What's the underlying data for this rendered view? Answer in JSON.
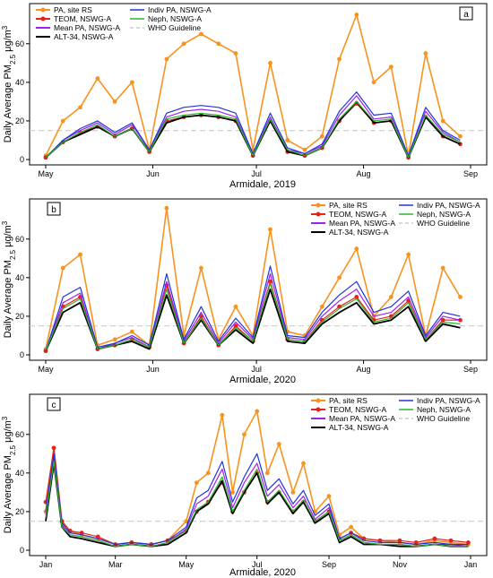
{
  "figure": {
    "y_axis_label_text": "Daily Average PM",
    "y_axis_label_sub": "2.5",
    "y_axis_label_unit": " μg/m",
    "y_axis_label_sup": "3"
  },
  "legend_order": [
    "PA, site RS",
    "TEOM, NSWG-A",
    "Mean PA, NSWG-A",
    "ALT-34, NSWG-A",
    "Indiv PA, NSWG-A",
    "Neph, NSWG-A",
    "WHO Guideline"
  ],
  "chart_data": [
    {
      "panel": "a",
      "type": "line",
      "title": "",
      "xlabel": "Armidale, 2019",
      "ylabel": "Daily Average PM2.5 μg/m3",
      "x_type": "date",
      "x_ticks": [
        "2019-05-01",
        "2019-06-01",
        "2019-07-01",
        "2019-08-01",
        "2019-09-01"
      ],
      "x_tick_labels": [
        "May",
        "Jun",
        "Jul",
        "Aug",
        "Sep"
      ],
      "xlim": [
        "2019-05-01",
        "2019-09-01"
      ],
      "y_ticks": [
        0,
        20,
        40,
        60
      ],
      "ylim": [
        0,
        78
      ],
      "legend": {
        "placement": "top-left",
        "columns": 2
      },
      "who_guideline": 15,
      "x": [
        "2019-05-01",
        "2019-05-06",
        "2019-05-11",
        "2019-05-16",
        "2019-05-21",
        "2019-05-26",
        "2019-05-31",
        "2019-06-05",
        "2019-06-10",
        "2019-06-15",
        "2019-06-20",
        "2019-06-25",
        "2019-06-30",
        "2019-07-05",
        "2019-07-10",
        "2019-07-15",
        "2019-07-20",
        "2019-07-25",
        "2019-07-30",
        "2019-08-04",
        "2019-08-09",
        "2019-08-14",
        "2019-08-19",
        "2019-08-24",
        "2019-08-29"
      ],
      "series": [
        {
          "name": "PA, site RS",
          "color": "#f7931e",
          "values": [
            2,
            20,
            27,
            42,
            30,
            40,
            5,
            52,
            60,
            65,
            60,
            55,
            5,
            50,
            10,
            5,
            12,
            52,
            75,
            40,
            48,
            2,
            55,
            20,
            12
          ]
        },
        {
          "name": "TEOM, NSWG-A",
          "color": "#e8221b",
          "values": [
            1,
            9,
            14,
            17,
            12,
            16,
            4,
            20,
            22,
            23,
            22,
            20,
            2,
            20,
            4,
            2,
            6,
            20,
            29,
            19,
            20,
            1,
            22,
            12,
            8
          ]
        },
        {
          "name": "Mean PA, NSWG-A",
          "color": "#a020f0",
          "values": [
            1,
            10,
            15,
            19,
            13,
            18,
            5,
            22,
            25,
            26,
            25,
            22,
            3,
            22,
            5,
            3,
            7,
            23,
            33,
            21,
            22,
            2,
            25,
            14,
            9
          ]
        },
        {
          "name": "ALT-34, NSWG-A",
          "color": "#000000",
          "values": [
            1,
            9,
            13,
            17,
            12,
            16,
            4,
            19,
            22,
            23,
            22,
            20,
            2,
            20,
            4,
            2,
            6,
            20,
            30,
            19,
            20,
            1,
            22,
            12,
            8
          ]
        },
        {
          "name": "Indiv PA, NSWG-A",
          "color": "#2233dd",
          "values": [
            1,
            10,
            16,
            20,
            14,
            19,
            5,
            24,
            27,
            28,
            27,
            24,
            3,
            24,
            6,
            3,
            8,
            25,
            35,
            23,
            24,
            2,
            27,
            15,
            10
          ]
        },
        {
          "name": "Neph, NSWG-A",
          "color": "#2db52d",
          "values": [
            1,
            9,
            14,
            18,
            12,
            16,
            4,
            21,
            23,
            24,
            23,
            21,
            2,
            21,
            5,
            2,
            6,
            21,
            30,
            20,
            21,
            1,
            23,
            13,
            9
          ]
        }
      ]
    },
    {
      "panel": "b",
      "type": "line",
      "title": "",
      "xlabel": "Armidale, 2020",
      "ylabel": "Daily Average PM2.5 μg/m3",
      "x_type": "date",
      "x_ticks": [
        "2020-05-01",
        "2020-06-01",
        "2020-07-01",
        "2020-08-01",
        "2020-09-01"
      ],
      "x_tick_labels": [
        "May",
        "Jun",
        "Jul",
        "Aug",
        "Sep"
      ],
      "xlim": [
        "2020-05-01",
        "2020-09-01"
      ],
      "y_ticks": [
        0,
        20,
        40,
        60
      ],
      "ylim": [
        0,
        78
      ],
      "legend": {
        "placement": "top-right",
        "columns": 2
      },
      "who_guideline": 15,
      "x": [
        "2020-05-01",
        "2020-05-06",
        "2020-05-11",
        "2020-05-16",
        "2020-05-21",
        "2020-05-26",
        "2020-05-31",
        "2020-06-05",
        "2020-06-10",
        "2020-06-15",
        "2020-06-20",
        "2020-06-25",
        "2020-06-30",
        "2020-07-05",
        "2020-07-10",
        "2020-07-15",
        "2020-07-20",
        "2020-07-25",
        "2020-07-30",
        "2020-08-04",
        "2020-08-09",
        "2020-08-14",
        "2020-08-19",
        "2020-08-24",
        "2020-08-29"
      ],
      "series": [
        {
          "name": "PA, site RS",
          "color": "#f7931e",
          "values": [
            3,
            45,
            52,
            5,
            8,
            12,
            5,
            76,
            10,
            45,
            8,
            25,
            10,
            65,
            12,
            10,
            25,
            40,
            55,
            20,
            30,
            52,
            10,
            45,
            30
          ]
        },
        {
          "name": "TEOM, NSWG-A",
          "color": "#e8221b",
          "values": [
            2,
            25,
            30,
            3,
            5,
            8,
            4,
            36,
            6,
            20,
            5,
            15,
            7,
            38,
            8,
            7,
            18,
            25,
            30,
            18,
            20,
            28,
            8,
            18,
            18
          ]
        },
        {
          "name": "Mean PA, NSWG-A",
          "color": "#a020f0",
          "values": [
            2,
            27,
            32,
            3,
            6,
            9,
            4,
            38,
            7,
            22,
            6,
            17,
            8,
            42,
            9,
            8,
            20,
            28,
            34,
            20,
            22,
            30,
            9,
            20,
            18
          ]
        },
        {
          "name": "ALT-34, NSWG-A",
          "color": "#000000",
          "values": [
            2,
            22,
            27,
            3,
            5,
            7,
            3,
            31,
            6,
            18,
            5,
            13,
            6,
            34,
            7,
            6,
            16,
            22,
            27,
            16,
            18,
            25,
            7,
            16,
            14
          ]
        },
        {
          "name": "Indiv PA, NSWG-A",
          "color": "#2233dd",
          "values": [
            2,
            30,
            35,
            4,
            6,
            10,
            5,
            42,
            8,
            25,
            7,
            19,
            9,
            46,
            10,
            9,
            22,
            31,
            38,
            22,
            25,
            33,
            10,
            22,
            20
          ]
        },
        {
          "name": "Neph, NSWG-A",
          "color": "#2db52d",
          "values": [
            2,
            24,
            29,
            3,
            5,
            8,
            4,
            34,
            6,
            19,
            5,
            14,
            7,
            37,
            8,
            7,
            17,
            24,
            29,
            17,
            19,
            27,
            8,
            17,
            16
          ]
        }
      ]
    },
    {
      "panel": "c",
      "type": "line",
      "title": "",
      "xlabel": "Armidale, 2020",
      "ylabel": "Daily Average PM2.5 μg/m3",
      "x_type": "date",
      "x_ticks": [
        "2020-01-01",
        "2020-03-01",
        "2020-05-01",
        "2020-07-01",
        "2020-09-01",
        "2020-11-01",
        "2021-01-01"
      ],
      "x_tick_labels": [
        "Jan",
        "Mar",
        "May",
        "Jul",
        "Sep",
        "Nov",
        "Jan"
      ],
      "xlim": [
        "2020-01-01",
        "2021-01-01"
      ],
      "y_ticks": [
        0,
        20,
        40,
        60
      ],
      "ylim": [
        0,
        78
      ],
      "legend": {
        "placement": "top-right",
        "columns": 2
      },
      "who_guideline": 15,
      "x": [
        "2020-01-01",
        "2020-01-08",
        "2020-01-15",
        "2020-01-22",
        "2020-02-01",
        "2020-02-15",
        "2020-03-01",
        "2020-03-15",
        "2020-04-01",
        "2020-04-15",
        "2020-05-01",
        "2020-05-10",
        "2020-05-20",
        "2020-06-01",
        "2020-06-10",
        "2020-06-20",
        "2020-07-01",
        "2020-07-10",
        "2020-07-20",
        "2020-08-01",
        "2020-08-10",
        "2020-08-20",
        "2020-09-01",
        "2020-09-10",
        "2020-09-20",
        "2020-10-01",
        "2020-10-15",
        "2020-11-01",
        "2020-11-15",
        "2020-12-01",
        "2020-12-15",
        "2020-12-30"
      ],
      "series": [
        {
          "name": "PA, site RS",
          "color": "#f7931e",
          "values": [
            20,
            53,
            15,
            10,
            8,
            6,
            3,
            4,
            3,
            5,
            15,
            35,
            40,
            70,
            30,
            60,
            72,
            40,
            55,
            30,
            45,
            20,
            28,
            8,
            12,
            6,
            5,
            4,
            3,
            5,
            4,
            3
          ]
        },
        {
          "name": "TEOM, NSWG-A",
          "color": "#e8221b",
          "values": [
            25,
            53,
            15,
            10,
            9,
            7,
            3,
            4,
            3,
            5,
            10,
            20,
            25,
            35,
            20,
            30,
            40,
            25,
            30,
            20,
            25,
            15,
            20,
            6,
            9,
            6,
            5,
            5,
            4,
            6,
            5,
            4
          ]
        },
        {
          "name": "Mean PA, NSWG-A",
          "color": "#a020f0",
          "values": [
            18,
            48,
            13,
            8,
            7,
            5,
            2,
            3,
            2,
            4,
            11,
            24,
            28,
            42,
            22,
            35,
            45,
            28,
            34,
            22,
            28,
            16,
            22,
            5,
            8,
            4,
            3,
            3,
            2,
            3,
            3,
            2
          ]
        },
        {
          "name": "ALT-34, NSWG-A",
          "color": "#000000",
          "values": [
            15,
            45,
            12,
            7,
            6,
            4,
            2,
            3,
            2,
            3,
            9,
            20,
            24,
            36,
            19,
            30,
            40,
            24,
            30,
            19,
            25,
            14,
            19,
            4,
            7,
            3,
            3,
            2,
            2,
            3,
            2,
            2
          ]
        },
        {
          "name": "Indiv PA, NSWG-A",
          "color": "#2233dd",
          "values": [
            20,
            50,
            14,
            9,
            8,
            6,
            3,
            4,
            3,
            5,
            12,
            27,
            31,
            46,
            25,
            38,
            50,
            31,
            37,
            24,
            31,
            18,
            24,
            6,
            9,
            5,
            4,
            4,
            3,
            4,
            3,
            3
          ]
        },
        {
          "name": "Neph, NSWG-A",
          "color": "#2db52d",
          "values": [
            17,
            46,
            12,
            8,
            7,
            5,
            2,
            3,
            2,
            4,
            10,
            21,
            25,
            38,
            20,
            31,
            42,
            25,
            31,
            20,
            26,
            15,
            20,
            5,
            8,
            4,
            3,
            3,
            2,
            3,
            2,
            2
          ]
        }
      ]
    }
  ]
}
